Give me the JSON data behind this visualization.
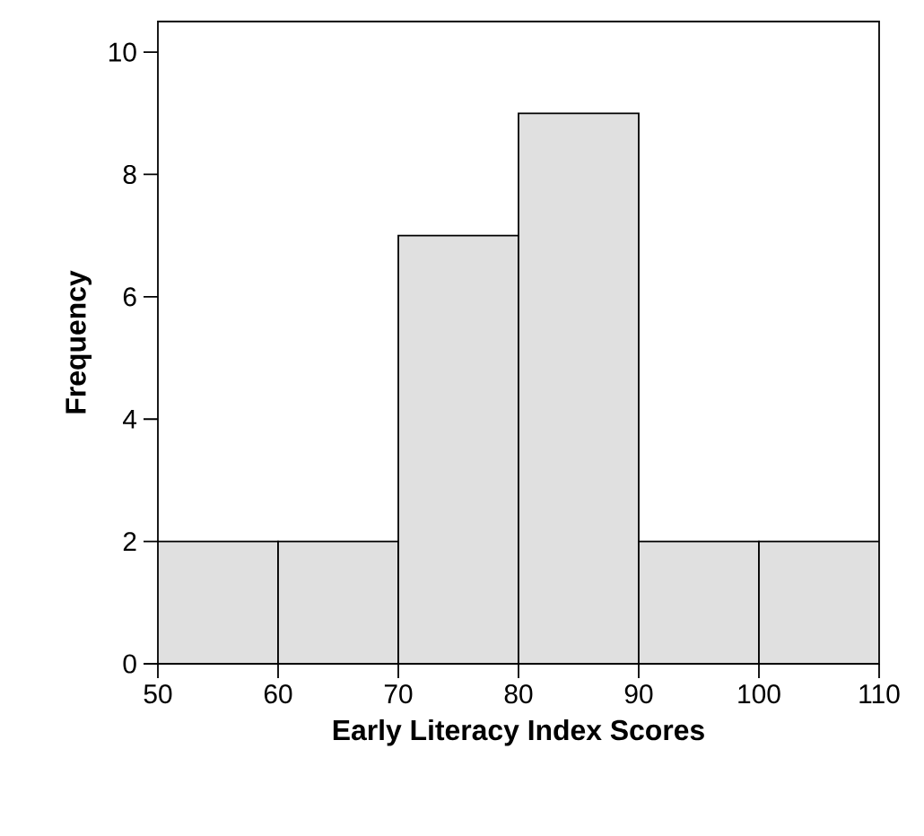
{
  "chart_data": {
    "type": "histogram",
    "xlabel": "Early Literacy Index Scores",
    "ylabel": "Frequency",
    "bins": [
      50,
      60,
      70,
      80,
      90,
      100,
      110
    ],
    "values": [
      2,
      2,
      7,
      9,
      2,
      2
    ],
    "color": "#e0e0e0",
    "xlim": [
      50,
      110
    ],
    "ylim": [
      0,
      10.5
    ],
    "xticks": [
      50,
      60,
      70,
      80,
      90,
      100,
      110
    ],
    "yticks": [
      0,
      2,
      4,
      6,
      8,
      10
    ]
  }
}
